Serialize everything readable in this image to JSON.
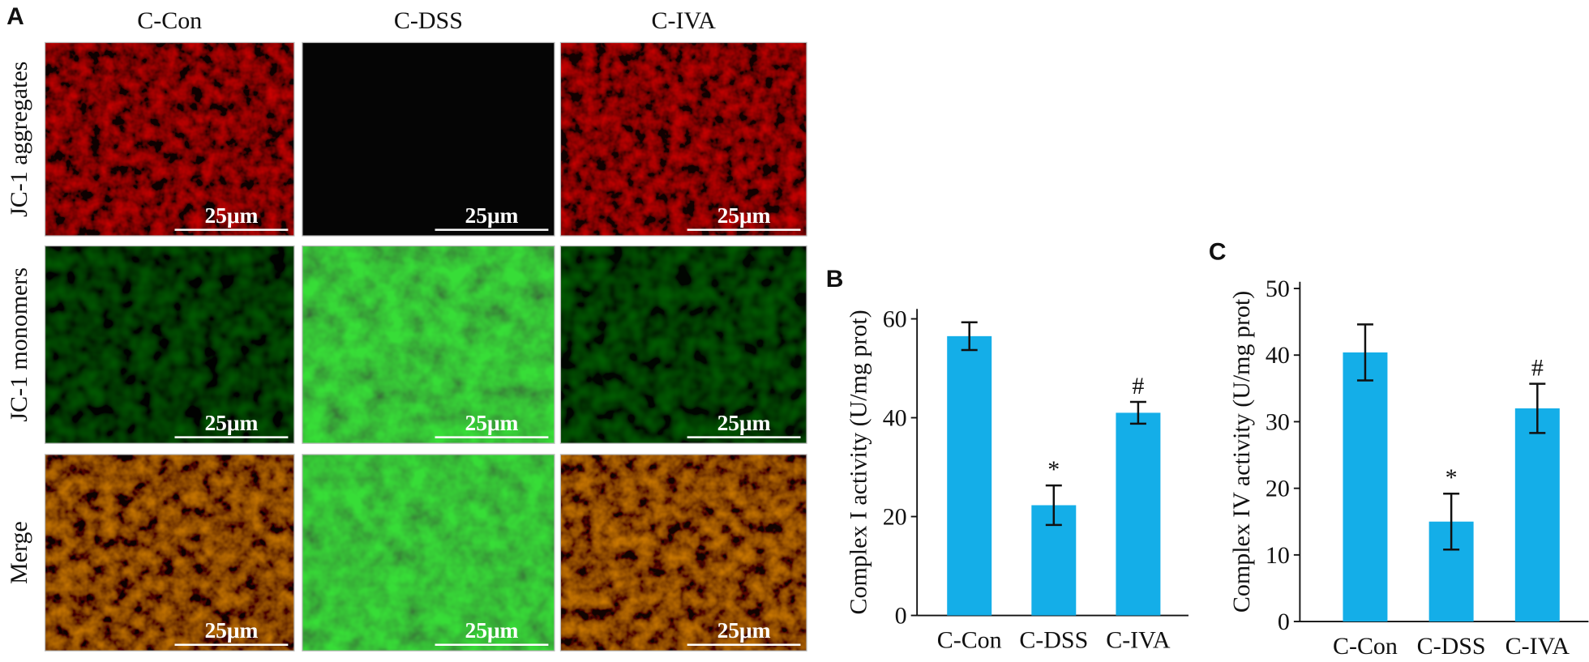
{
  "panel_a": {
    "label": "A",
    "columns": [
      "C-Con",
      "C-DSS",
      "C-IVA"
    ],
    "rows": [
      "JC-1 aggregates",
      "JC-1 monomers",
      "Merge"
    ],
    "scale_bar": "25μm"
  },
  "chart_data": [
    {
      "type": "bar",
      "panel": "B",
      "ylabel": "Complex I activity (U/mg prot)",
      "categories": [
        "C-Con",
        "C-DSS",
        "C-IVA"
      ],
      "values": [
        56.5,
        22.3,
        41
      ],
      "errors": [
        2.8,
        4,
        2.2
      ],
      "color": "#14aee8",
      "ylim": [
        0,
        62
      ],
      "yticks": [
        0,
        20,
        40,
        60
      ],
      "annotations": [
        {
          "x": "C-DSS",
          "text": "*"
        },
        {
          "x": "C-IVA",
          "text": "#"
        }
      ]
    },
    {
      "type": "bar",
      "panel": "C",
      "ylabel": "Complex IV activity (U/mg prot)",
      "categories": [
        "C-Con",
        "C-DSS",
        "C-IVA"
      ],
      "values": [
        40.4,
        15,
        32
      ],
      "errors": [
        4.2,
        4.2,
        3.7
      ],
      "color": "#14aee8",
      "ylim": [
        0,
        51
      ],
      "yticks": [
        0,
        10,
        20,
        30,
        40,
        50
      ],
      "annotations": [
        {
          "x": "C-DSS",
          "text": "*"
        },
        {
          "x": "C-IVA",
          "text": "#"
        }
      ]
    }
  ]
}
